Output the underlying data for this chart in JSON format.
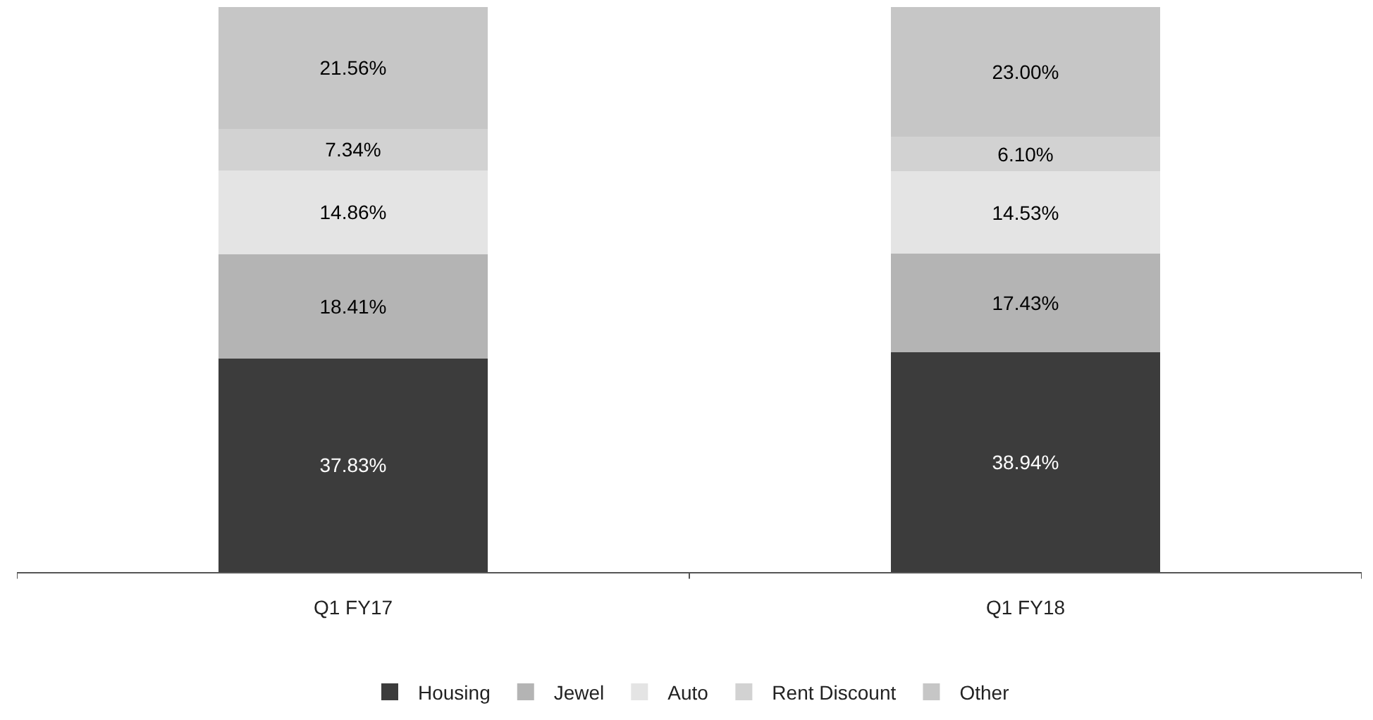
{
  "chart_data": {
    "type": "bar",
    "stacked": true,
    "categories": [
      "Q1 FY17",
      "Q1 FY18"
    ],
    "series": [
      {
        "name": "Housing",
        "color": "#3c3c3c",
        "values": [
          37.83,
          38.94
        ],
        "value_labels": [
          "37.83%",
          "38.94%"
        ]
      },
      {
        "name": "Jewel",
        "color": "#b4b4b4",
        "values": [
          18.41,
          17.43
        ],
        "value_labels": [
          "18.41%",
          "17.43%"
        ]
      },
      {
        "name": "Auto",
        "color": "#e4e4e4",
        "values": [
          14.86,
          14.53
        ],
        "value_labels": [
          "14.86%",
          "14.53%"
        ]
      },
      {
        "name": "Rent Discount",
        "color": "#d2d2d2",
        "values": [
          7.34,
          6.1
        ],
        "value_labels": [
          "7.34%",
          "6.10%"
        ]
      },
      {
        "name": "Other",
        "color": "#c6c6c6",
        "values": [
          21.56,
          23.0
        ],
        "value_labels": [
          "21.56%",
          "23.00%"
        ]
      }
    ],
    "legend": "bottom"
  }
}
